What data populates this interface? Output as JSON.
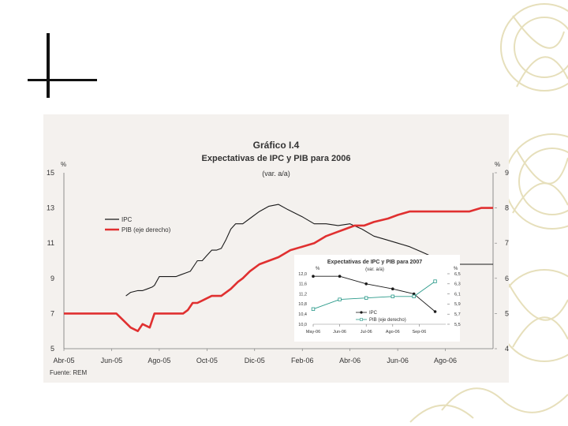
{
  "chart_data": [
    {
      "type": "line",
      "title": "Gráfico I.4",
      "subtitle": "Expectativas de IPC y PIB para 2006",
      "unit_note": "(var. a/a)",
      "left_axis_label": "%",
      "right_axis_label": "%",
      "ylim": [
        5,
        15
      ],
      "y2lim": [
        4,
        9
      ],
      "yticks": [
        "15",
        "13",
        "11",
        "9",
        "7",
        "5"
      ],
      "y2ticks": [
        "9",
        "8",
        "7",
        "6",
        "5",
        "4"
      ],
      "x_tick_labels": [
        "Abr-05",
        "Jun-05",
        "Ago-05",
        "Oct-05",
        "Dic-05",
        "Feb-06",
        "Abr-06",
        "Jun-06",
        "Ago-06"
      ],
      "x_tick_index": [
        0,
        2,
        4,
        6,
        8,
        10,
        12,
        14,
        16
      ],
      "x_max_index": 18,
      "series": [
        {
          "name": "IPC",
          "color": "#1a1a1a",
          "axis": "left",
          "x": [
            2.6,
            2.8,
            3.1,
            3.3,
            3.5,
            3.7,
            3.8,
            4.0,
            4.3,
            4.5,
            4.7,
            4.9,
            5.1,
            5.3,
            5.5,
            5.6,
            5.8,
            6.0,
            6.2,
            6.4,
            6.6,
            6.8,
            7.0,
            7.2,
            7.5,
            7.8,
            8.2,
            8.6,
            9.0,
            9.4,
            10.0,
            10.5,
            11.0,
            11.5,
            12.0,
            12.5,
            13.0,
            13.5,
            14.0,
            14.5,
            15.0,
            15.5,
            16.0,
            16.5,
            17.0,
            17.5,
            18.0
          ],
          "values": [
            8.0,
            8.2,
            8.3,
            8.3,
            8.4,
            8.5,
            8.6,
            9.1,
            9.1,
            9.1,
            9.1,
            9.2,
            9.3,
            9.4,
            9.8,
            10.0,
            10.0,
            10.3,
            10.6,
            10.6,
            10.7,
            11.2,
            11.8,
            12.1,
            12.1,
            12.4,
            12.8,
            13.1,
            13.2,
            12.9,
            12.5,
            12.1,
            12.1,
            12.0,
            12.1,
            11.8,
            11.4,
            11.2,
            11.0,
            10.8,
            10.5,
            10.2,
            10.0,
            9.8,
            9.8,
            9.8,
            9.8
          ]
        },
        {
          "name": "PIB (eje derecho)",
          "color": "#e03030",
          "axis": "right",
          "x": [
            0,
            0.5,
            1.0,
            1.5,
            1.8,
            2.0,
            2.2,
            2.5,
            2.8,
            3.1,
            3.3,
            3.6,
            3.8,
            4.0,
            4.3,
            4.6,
            5.0,
            5.2,
            5.4,
            5.6,
            5.9,
            6.2,
            6.4,
            6.6,
            7.0,
            7.3,
            7.5,
            7.8,
            8.2,
            8.6,
            9.0,
            9.5,
            10.0,
            10.5,
            11.0,
            11.4,
            11.8,
            12.2,
            12.6,
            13.0,
            13.6,
            14.0,
            14.5,
            15.0,
            15.5,
            16.0,
            16.5,
            17.0,
            17.5,
            18.0
          ],
          "values": [
            5.0,
            5.0,
            5.0,
            5.0,
            5.0,
            5.0,
            5.0,
            4.8,
            4.6,
            4.5,
            4.7,
            4.6,
            5.0,
            5.0,
            5.0,
            5.0,
            5.0,
            5.1,
            5.3,
            5.3,
            5.4,
            5.5,
            5.5,
            5.5,
            5.7,
            5.9,
            6.0,
            6.2,
            6.4,
            6.5,
            6.6,
            6.8,
            6.9,
            7.0,
            7.2,
            7.3,
            7.4,
            7.5,
            7.5,
            7.6,
            7.7,
            7.8,
            7.9,
            7.9,
            7.9,
            7.9,
            7.9,
            7.9,
            8.0,
            8.0
          ]
        }
      ],
      "legend": [
        "IPC",
        "PIB (eje derecho)"
      ],
      "legend_position": "top-left",
      "source": "Fuente: REM"
    },
    {
      "type": "line",
      "title": "Expectativas de IPC y PIB para 2007",
      "unit_note": "(var. a/a)",
      "left_axis_label": "%",
      "right_axis_label": "%",
      "ylim": [
        10.0,
        12.0
      ],
      "y2lim": [
        5.5,
        6.5
      ],
      "yticks": [
        "12,0",
        "11,6",
        "11,2",
        "10,8",
        "10,4",
        "10,0"
      ],
      "y2ticks": [
        "6,5",
        "6,3",
        "6,1",
        "5,9",
        "5,7",
        "5,5"
      ],
      "categories": [
        "May-06",
        "Jun-06",
        "Jul-06",
        "Ago-06",
        "Sep-06"
      ],
      "x_tick_index": [
        0,
        1,
        2,
        3,
        4
      ],
      "x_max_index": 5,
      "series": [
        {
          "name": "IPC",
          "color": "#1a1a1a",
          "axis": "left",
          "marker": "circle",
          "x": [
            0,
            1,
            2,
            3,
            3.8,
            4.6
          ],
          "values": [
            11.9,
            11.9,
            11.6,
            11.4,
            11.2,
            10.5
          ]
        },
        {
          "name": "PIB (eje derecho)",
          "color": "#2a9a8a",
          "axis": "right",
          "marker": "square",
          "x": [
            0,
            1,
            2,
            3,
            3.8,
            4.6
          ],
          "values": [
            5.8,
            5.99,
            6.02,
            6.05,
            6.05,
            6.35
          ]
        }
      ],
      "legend": [
        "IPC",
        "PIB (eje derecho)"
      ],
      "legend_position": "bottom-left"
    }
  ]
}
